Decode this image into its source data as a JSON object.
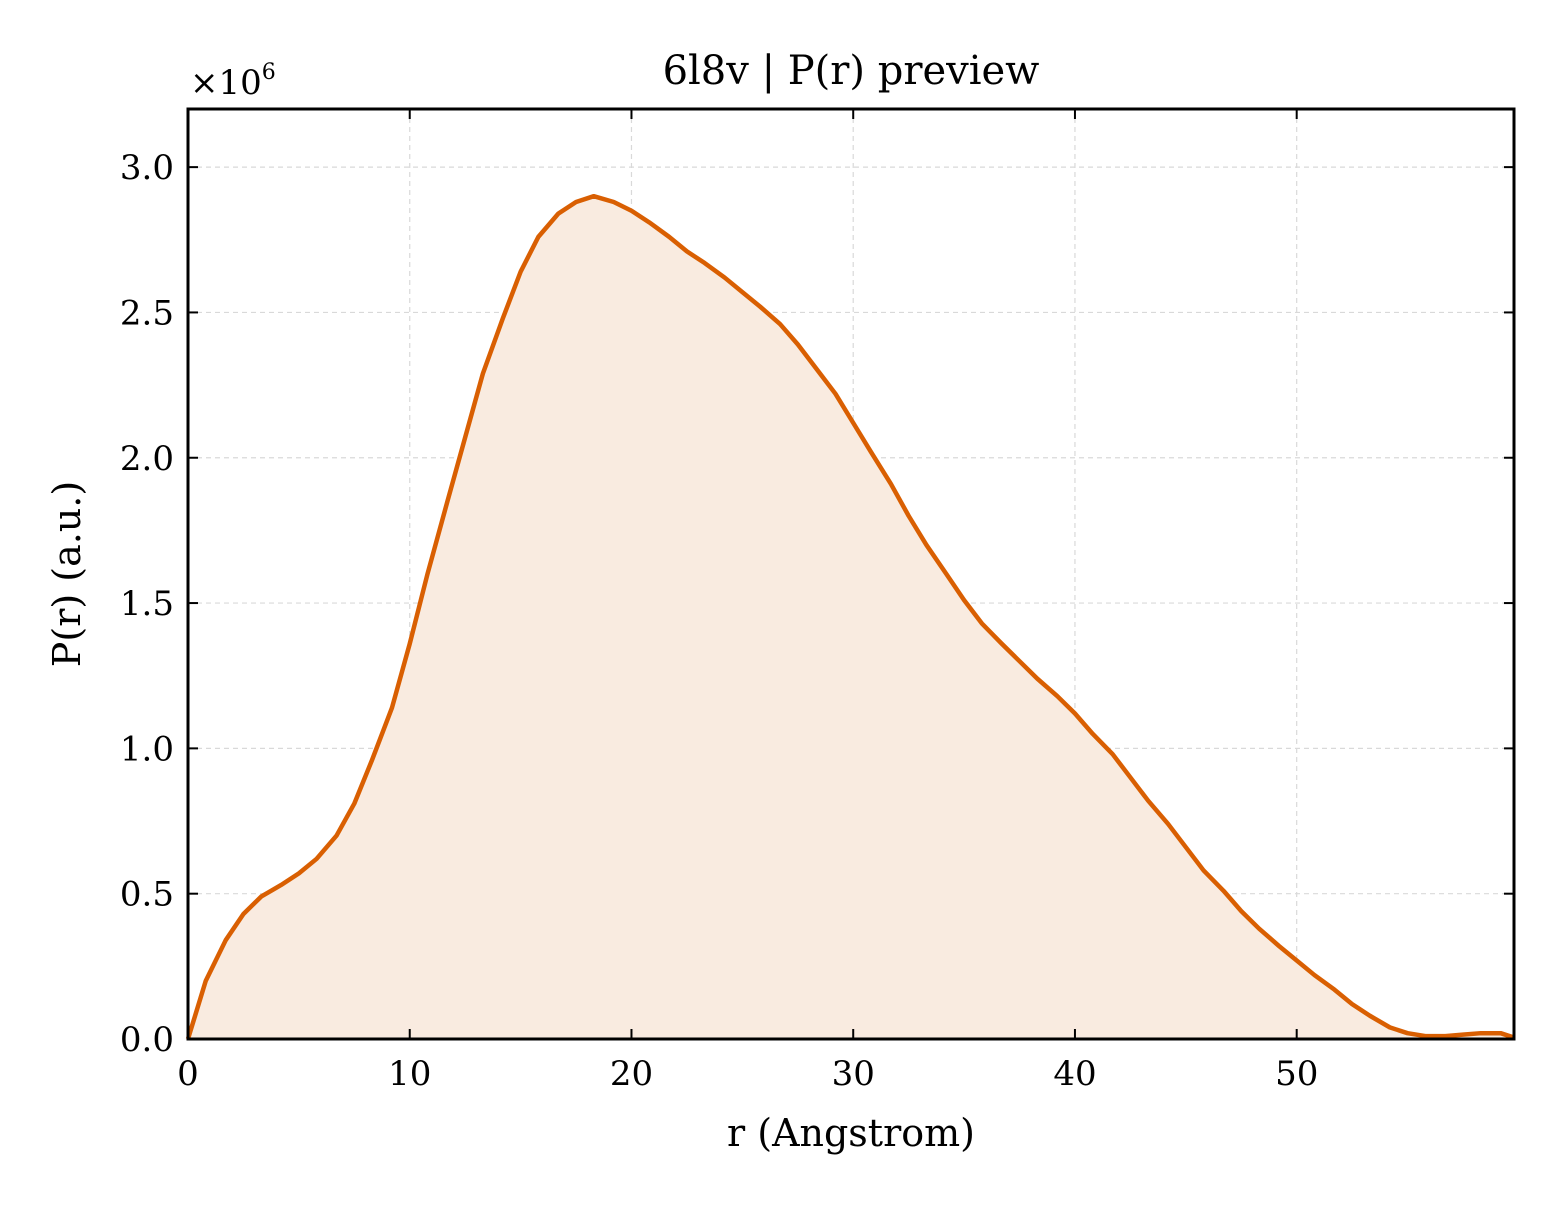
{
  "chart_data": {
    "type": "area",
    "title": "6l8v | P(r) preview",
    "xlabel": "r (Angstrom)",
    "ylabel": "P(r) (a.u.)",
    "y_multiplier": {
      "base": "×10",
      "exponent": "6"
    },
    "xlim": [
      0,
      59.8
    ],
    "ylim": [
      0,
      3.2
    ],
    "y_scale": 1000000,
    "xticks": [
      0,
      10,
      20,
      30,
      40,
      50
    ],
    "xtick_labels": [
      "0",
      "10",
      "20",
      "30",
      "40",
      "50"
    ],
    "yticks": [
      0,
      0.5,
      1.0,
      1.5,
      2.0,
      2.5,
      3.0
    ],
    "ytick_labels": [
      "0.0",
      "0.5",
      "1.0",
      "1.5",
      "2.0",
      "2.5",
      "3.0"
    ],
    "grid": true,
    "legend": "none",
    "colors": {
      "line": "#D95F02",
      "fill": "#F9EBE0",
      "grid": "#d9d9d9",
      "axes": "#000000"
    },
    "series": [
      {
        "x": [
          0.0,
          0.8,
          1.7,
          2.5,
          3.3,
          4.2,
          5.0,
          5.8,
          6.7,
          7.5,
          8.3,
          9.2,
          10.0,
          10.8,
          11.7,
          12.5,
          13.3,
          14.2,
          15.0,
          15.8,
          16.7,
          17.5,
          18.3,
          19.2,
          20.0,
          20.8,
          21.7,
          22.5,
          23.3,
          24.2,
          25.0,
          25.8,
          26.7,
          27.5,
          28.3,
          29.2,
          30.0,
          30.8,
          31.7,
          32.5,
          33.3,
          34.2,
          35.0,
          35.8,
          36.7,
          37.5,
          38.3,
          39.2,
          40.0,
          40.8,
          41.7,
          42.5,
          43.3,
          44.2,
          45.0,
          45.8,
          46.7,
          47.5,
          48.3,
          49.2,
          50.0,
          50.8,
          51.7,
          52.5,
          53.3,
          54.2,
          55.0,
          55.8,
          56.7,
          57.5,
          58.3,
          59.2,
          59.8
        ],
        "values": [
          0.0,
          0.2,
          0.34,
          0.43,
          0.49,
          0.53,
          0.57,
          0.62,
          0.7,
          0.81,
          0.96,
          1.14,
          1.36,
          1.6,
          1.85,
          2.07,
          2.29,
          2.48,
          2.64,
          2.76,
          2.84,
          2.88,
          2.9,
          2.88,
          2.85,
          2.81,
          2.76,
          2.71,
          2.67,
          2.62,
          2.57,
          2.52,
          2.46,
          2.39,
          2.31,
          2.22,
          2.12,
          2.02,
          1.91,
          1.8,
          1.7,
          1.6,
          1.51,
          1.43,
          1.36,
          1.3,
          1.24,
          1.18,
          1.12,
          1.05,
          0.98,
          0.9,
          0.82,
          0.74,
          0.66,
          0.58,
          0.51,
          0.44,
          0.38,
          0.32,
          0.27,
          0.22,
          0.17,
          0.12,
          0.08,
          0.04,
          0.02,
          0.01,
          0.01,
          0.015,
          0.02,
          0.02,
          0.005
        ]
      }
    ]
  }
}
